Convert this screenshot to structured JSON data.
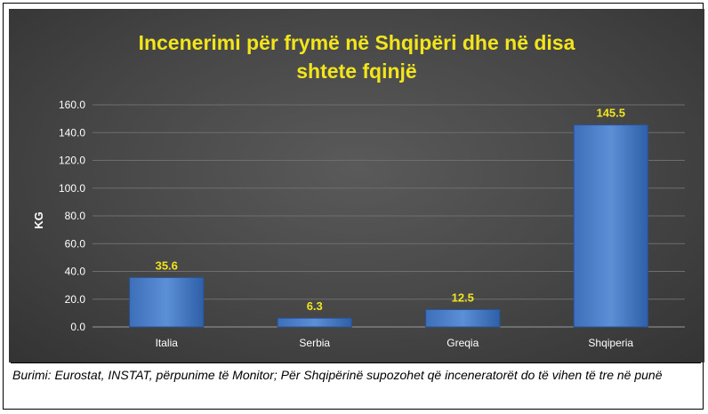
{
  "chart_data": {
    "type": "bar",
    "title": "Incenerimi për frymë në Shqipëri dhe në disa shtete fqinjë",
    "title_lines": [
      "Incenerimi për frymë në Shqipëri dhe në disa",
      "shtete fqinjë"
    ],
    "ylabel": "KG",
    "xlabel": "",
    "categories": [
      "Italia",
      "Serbia",
      "Greqia",
      "Shqiperia"
    ],
    "values": [
      35.6,
      6.3,
      12.5,
      145.5
    ],
    "value_labels": [
      "35.6",
      "6.3",
      "12.5",
      "145.5"
    ],
    "ylim": [
      0,
      160
    ],
    "yticks": [
      "0.0",
      "20.0",
      "40.0",
      "60.0",
      "80.0",
      "100.0",
      "120.0",
      "140.0",
      "160.0"
    ],
    "grid": true,
    "legend": "none"
  },
  "caption": "Burimi: Eurostat, INSTAT, përpunime të Monitor; Për Shqipërinë supozohet që inceneratorët do të vihen të tre në punë",
  "colors": {
    "title": "#f2e51c",
    "bar_top": "#5b8fd6",
    "bar_bottom": "#2e5fa8",
    "data_label": "#f2e51c",
    "axis_text": "#ffffff",
    "grid": "#6e6e6e"
  }
}
